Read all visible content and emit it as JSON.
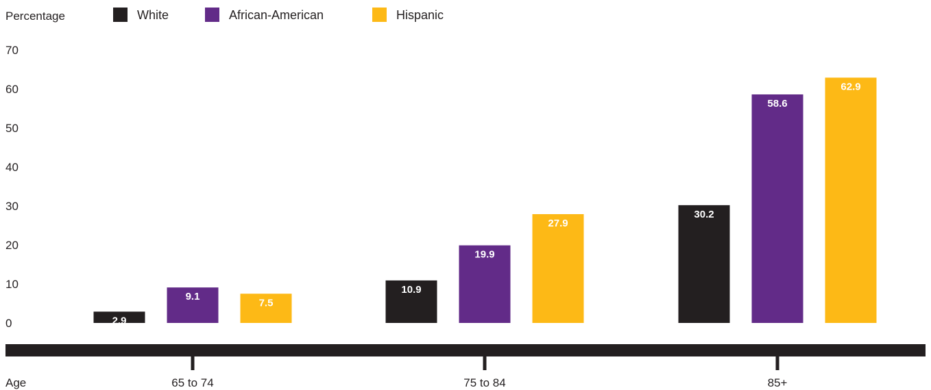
{
  "chart_data": {
    "type": "bar",
    "ylabel": "Percentage",
    "xlabel": "Age",
    "ylim": [
      0,
      70
    ],
    "yticks": [
      0,
      10,
      20,
      30,
      40,
      50,
      60,
      70
    ],
    "categories": [
      "65 to 74",
      "75 to 84",
      "85+"
    ],
    "series": [
      {
        "name": "White",
        "color": "#231f20",
        "values": [
          2.9,
          10.9,
          30.2
        ]
      },
      {
        "name": "African-American",
        "color": "#622b88",
        "values": [
          9.1,
          19.9,
          58.6
        ]
      },
      {
        "name": "Hispanic",
        "color": "#fdb916",
        "values": [
          7.5,
          27.9,
          62.9
        ]
      }
    ],
    "data_labels": [
      [
        "2.9",
        "10.9",
        "30.2"
      ],
      [
        "9.1",
        "19.9",
        "58.6"
      ],
      [
        "7.5",
        "27.9",
        "62.9"
      ]
    ],
    "legend": "top-left",
    "grid": false,
    "axis_bar_color": "#231f20"
  }
}
